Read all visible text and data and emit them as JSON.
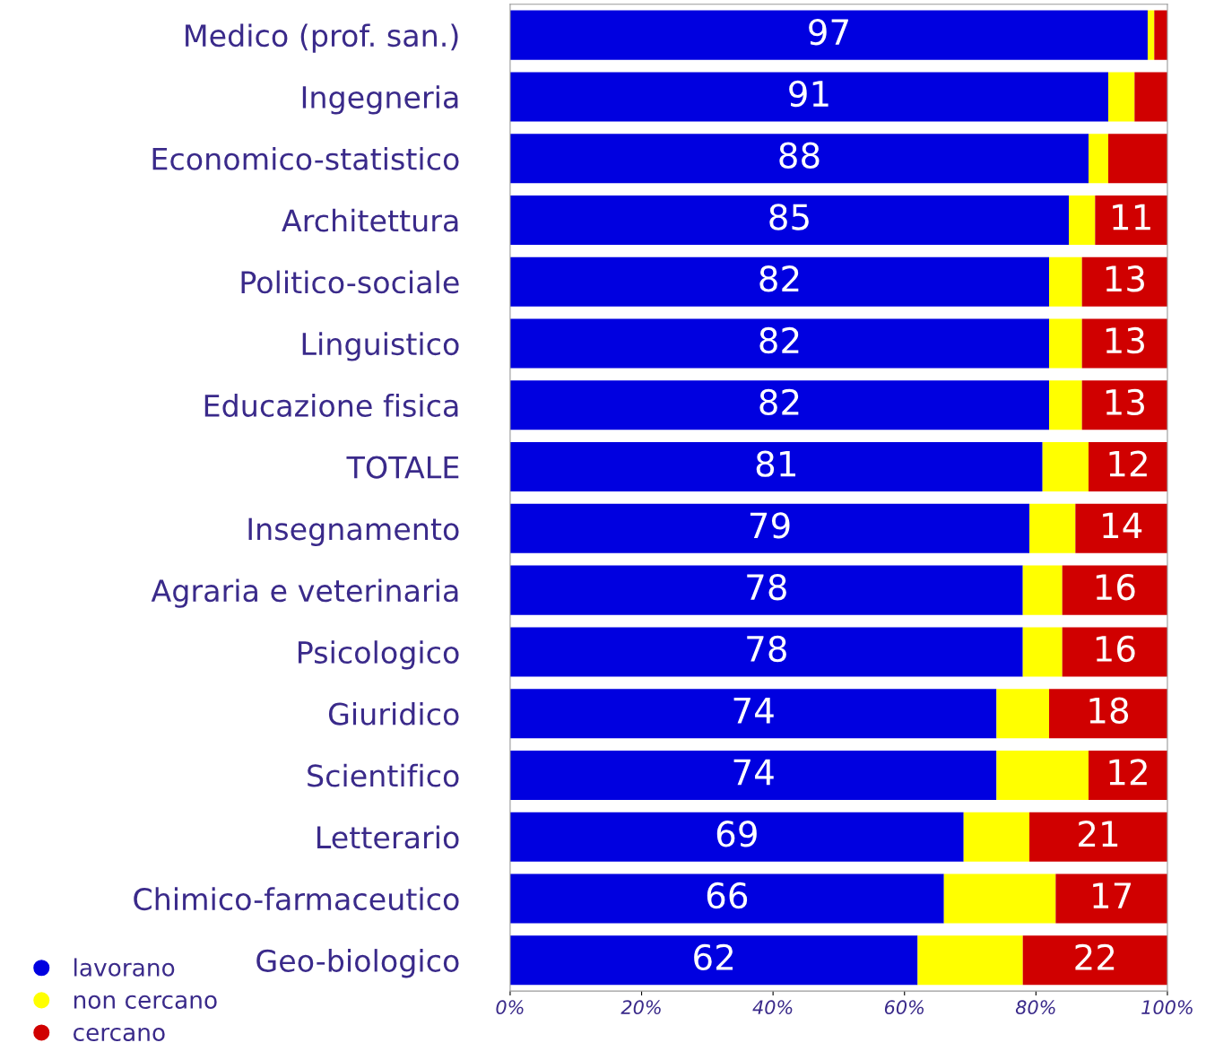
{
  "chart_data": {
    "type": "bar",
    "orientation": "horizontal",
    "stacked": true,
    "categories": [
      "Medico (prof. san.)",
      "Ingegneria",
      "Economico-statistico",
      "Architettura",
      "Politico-sociale",
      "Linguistico",
      "Educazione fisica",
      "TOTALE",
      "Insegnamento",
      "Agraria e veterinaria",
      "Psicologico",
      "Giuridico",
      "Scientifico",
      "Letterario",
      "Chimico-farmaceutico",
      "Geo-biologico"
    ],
    "series": [
      {
        "name": "lavorano",
        "color": "#0000e0",
        "values": [
          97,
          91,
          88,
          85,
          82,
          82,
          82,
          81,
          79,
          78,
          78,
          74,
          74,
          69,
          66,
          62
        ],
        "value_labels": [
          "97",
          "91",
          "88",
          "85",
          "82",
          "82",
          "82",
          "81",
          "79",
          "78",
          "78",
          "74",
          "74",
          "69",
          "66",
          "62"
        ]
      },
      {
        "name": "non cercano",
        "color": "#ffff00",
        "values": [
          1,
          4,
          3,
          4,
          5,
          5,
          5,
          7,
          7,
          6,
          6,
          8,
          14,
          10,
          17,
          16
        ]
      },
      {
        "name": "cercano",
        "color": "#d00000",
        "values": [
          2,
          5,
          9,
          11,
          13,
          13,
          13,
          12,
          14,
          16,
          16,
          18,
          12,
          21,
          17,
          22
        ],
        "value_labels": [
          null,
          null,
          null,
          "11",
          "13",
          "13",
          "13",
          "12",
          "14",
          "16",
          "16",
          "18",
          "12",
          "21",
          "17",
          "22"
        ]
      }
    ],
    "xlim": [
      0,
      100
    ],
    "xticks": [
      {
        "value": 0,
        "label": "0%"
      },
      {
        "value": 20,
        "label": "20%"
      },
      {
        "value": 40,
        "label": "40%"
      },
      {
        "value": 60,
        "label": "60%"
      },
      {
        "value": 80,
        "label": "80%"
      },
      {
        "value": 100,
        "label": "100%"
      }
    ],
    "grid": false,
    "legend": "bottom left",
    "marker": "circle"
  }
}
